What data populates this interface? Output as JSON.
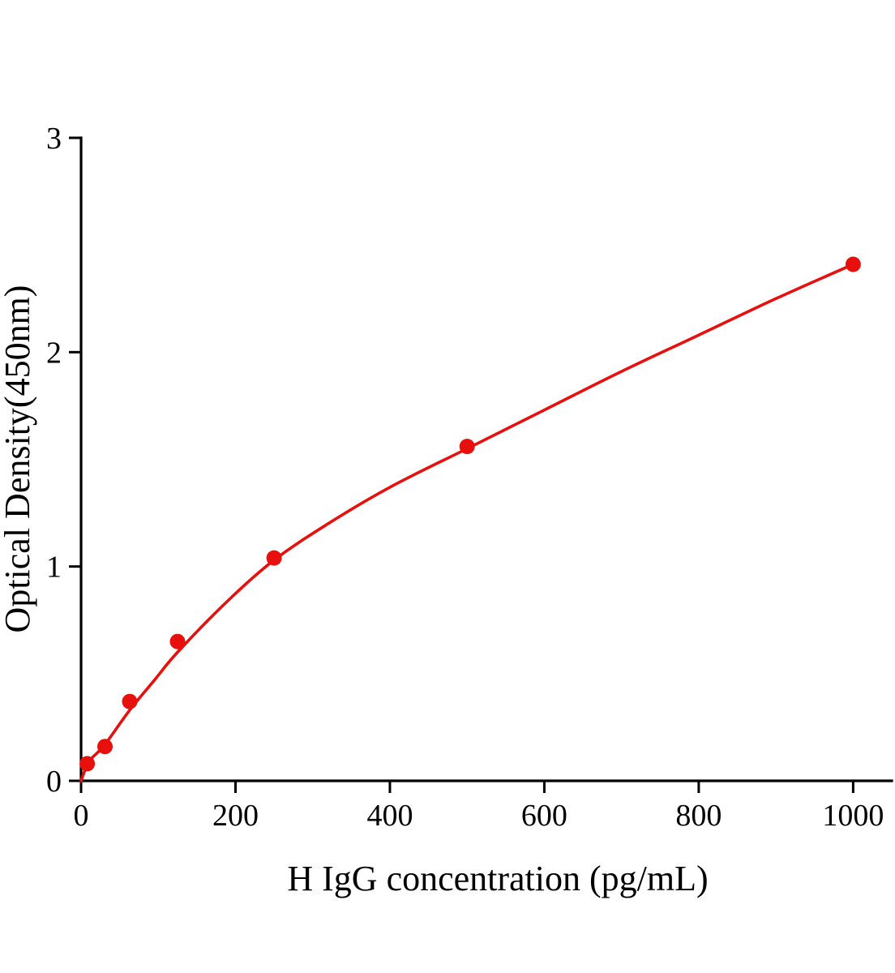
{
  "chart_data": {
    "type": "scatter",
    "title": "",
    "xlabel": "H IgG concentration (pg/mL)",
    "ylabel": "Optical Density(450nm)",
    "xlim": [
      0,
      1050
    ],
    "ylim": [
      0,
      3
    ],
    "x_ticks": [
      0,
      200,
      400,
      600,
      800,
      1000
    ],
    "y_ticks": [
      0,
      1,
      2,
      3
    ],
    "grid": false,
    "legend": false,
    "series": [
      {
        "color": "#e8100c",
        "marker": "circle",
        "points": [
          {
            "x": 8,
            "y": 0.08
          },
          {
            "x": 31,
            "y": 0.16
          },
          {
            "x": 63,
            "y": 0.37
          },
          {
            "x": 125,
            "y": 0.65
          },
          {
            "x": 250,
            "y": 1.04
          },
          {
            "x": 500,
            "y": 1.56
          },
          {
            "x": 1000,
            "y": 2.41
          }
        ],
        "fit_curve": [
          [
            0,
            0.0
          ],
          [
            5,
            0.05
          ],
          [
            8,
            0.08
          ],
          [
            15,
            0.11
          ],
          [
            31,
            0.17
          ],
          [
            63,
            0.33
          ],
          [
            95,
            0.47
          ],
          [
            125,
            0.6
          ],
          [
            190,
            0.84
          ],
          [
            250,
            1.03
          ],
          [
            320,
            1.2
          ],
          [
            400,
            1.37
          ],
          [
            500,
            1.55
          ],
          [
            600,
            1.73
          ],
          [
            700,
            1.91
          ],
          [
            800,
            2.08
          ],
          [
            900,
            2.25
          ],
          [
            1000,
            2.41
          ]
        ]
      }
    ]
  },
  "colors": {
    "accent": "#e8100c",
    "axis": "#000000",
    "background": "#ffffff"
  }
}
